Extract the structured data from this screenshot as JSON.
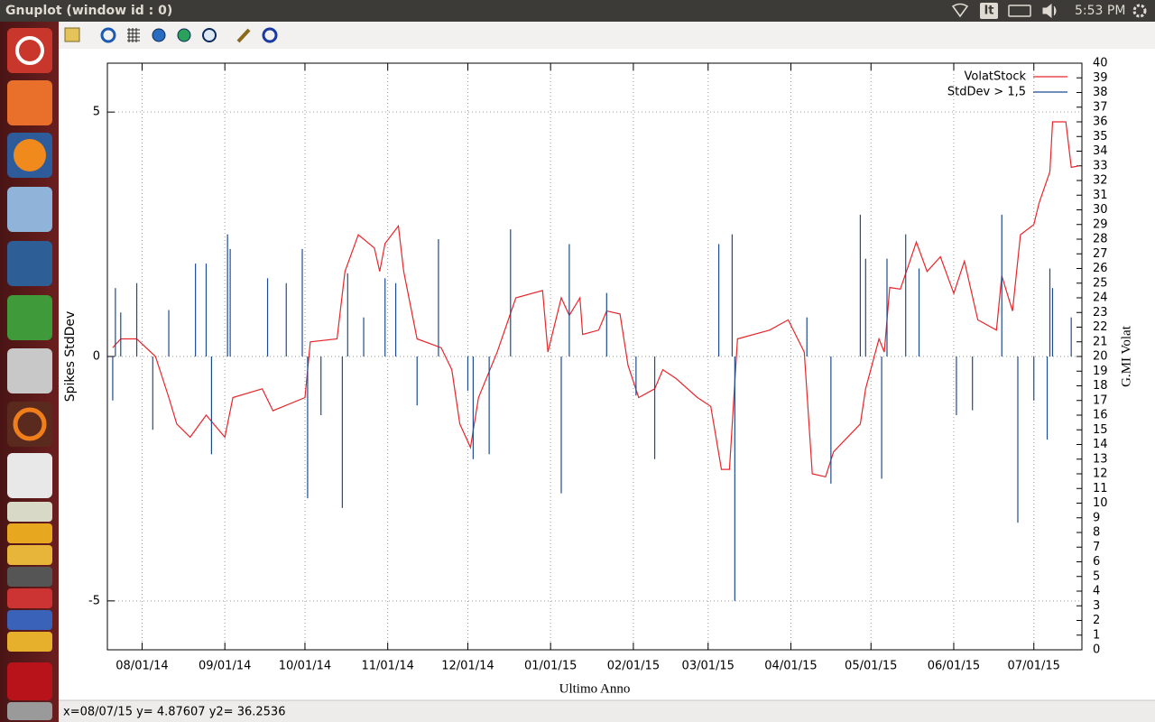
{
  "window": {
    "title": "Gnuplot (window id : 0)",
    "keyboard": "It",
    "clock": "5:53 PM",
    "status": "x=08/07/15 y= 4.87607 y2= 36.2536"
  },
  "chart_data": {
    "type": "line",
    "xlabel": "Ultimo Anno",
    "ylabel": "Spikes StdDev",
    "y2label": "G.MI Volat",
    "xlim": [
      "2014-07-19",
      "2015-07-19"
    ],
    "xticks": [
      {
        "value": "2014-08-01",
        "label": "08/01/14"
      },
      {
        "value": "2014-09-01",
        "label": "09/01/14"
      },
      {
        "value": "2014-10-01",
        "label": "10/01/14"
      },
      {
        "value": "2014-11-01",
        "label": "11/01/14"
      },
      {
        "value": "2014-12-01",
        "label": "12/01/14"
      },
      {
        "value": "2015-01-01",
        "label": "01/01/15"
      },
      {
        "value": "2015-02-01",
        "label": "02/01/15"
      },
      {
        "value": "2015-03-01",
        "label": "03/01/15"
      },
      {
        "value": "2015-04-01",
        "label": "04/01/15"
      },
      {
        "value": "2015-05-01",
        "label": "05/01/15"
      },
      {
        "value": "2015-06-01",
        "label": "06/01/15"
      },
      {
        "value": "2015-07-01",
        "label": "07/01/15"
      }
    ],
    "ylim": [
      -6,
      6
    ],
    "yticks": [
      -5,
      0,
      5
    ],
    "y2lim": [
      0,
      40
    ],
    "y2ticks": [
      0,
      1,
      2,
      3,
      4,
      5,
      6,
      7,
      8,
      9,
      10,
      11,
      12,
      13,
      14,
      15,
      16,
      17,
      18,
      19,
      20,
      21,
      22,
      23,
      24,
      25,
      26,
      27,
      28,
      29,
      30,
      31,
      32,
      33,
      34,
      35,
      36,
      37,
      38,
      39,
      40
    ],
    "grid": true,
    "legend": "top-right",
    "series": [
      {
        "name": "VolatStock",
        "color": "#e8262b",
        "style": "line",
        "axis": "y2",
        "x": [
          "2014-07-21",
          "2014-07-24",
          "2014-07-30",
          "2014-08-06",
          "2014-08-11",
          "2014-08-14",
          "2014-08-19",
          "2014-08-25",
          "2014-09-01",
          "2014-09-04",
          "2014-09-15",
          "2014-09-19",
          "2014-10-01",
          "2014-10-03",
          "2014-10-13",
          "2014-10-16",
          "2014-10-21",
          "2014-10-27",
          "2014-10-29",
          "2014-10-31",
          "2014-11-05",
          "2014-11-07",
          "2014-11-12",
          "2014-11-21",
          "2014-11-25",
          "2014-11-28",
          "2014-12-02",
          "2014-12-05",
          "2014-12-12",
          "2014-12-19",
          "2014-12-29",
          "2014-12-31",
          "2015-01-05",
          "2015-01-08",
          "2015-01-12",
          "2015-01-13",
          "2015-01-19",
          "2015-01-22",
          "2015-01-27",
          "2015-01-30",
          "2015-02-03",
          "2015-02-09",
          "2015-02-12",
          "2015-02-17",
          "2015-02-25",
          "2015-03-02",
          "2015-03-06",
          "2015-03-09",
          "2015-03-12",
          "2015-03-24",
          "2015-03-31",
          "2015-04-06",
          "2015-04-09",
          "2015-04-14",
          "2015-04-17",
          "2015-04-27",
          "2015-04-29",
          "2015-05-04",
          "2015-05-06",
          "2015-05-08",
          "2015-05-12",
          "2015-05-15",
          "2015-05-18",
          "2015-05-22",
          "2015-05-27",
          "2015-06-01",
          "2015-06-05",
          "2015-06-10",
          "2015-06-17",
          "2015-06-19",
          "2015-06-23",
          "2015-06-26",
          "2015-07-01",
          "2015-07-03",
          "2015-07-07",
          "2015-07-08",
          "2015-07-13",
          "2015-07-15",
          "2015-07-18"
        ],
        "values": [
          20.6,
          21.2,
          21.2,
          20.0,
          17.2,
          15.4,
          14.5,
          16.0,
          14.5,
          17.2,
          17.8,
          16.3,
          17.2,
          21.0,
          21.2,
          25.8,
          28.3,
          27.4,
          25.8,
          27.7,
          28.9,
          25.8,
          21.2,
          20.6,
          19.1,
          15.4,
          13.8,
          17.2,
          20.3,
          24.0,
          24.5,
          20.3,
          24.0,
          22.8,
          24.0,
          21.5,
          21.8,
          23.1,
          22.9,
          19.4,
          17.2,
          17.8,
          19.1,
          18.5,
          17.2,
          16.6,
          12.3,
          12.3,
          21.2,
          21.8,
          22.5,
          20.3,
          12.0,
          11.8,
          13.5,
          15.4,
          17.8,
          21.2,
          20.3,
          24.7,
          24.6,
          26.2,
          27.8,
          25.8,
          26.8,
          24.3,
          26.5,
          22.5,
          21.8,
          25.5,
          23.1,
          28.3,
          29.0,
          30.5,
          32.6,
          36.0,
          36.0,
          32.9,
          33.0
        ]
      },
      {
        "name": "StdDev > 1,5",
        "color": "#1f4c8f",
        "style": "impulse",
        "axis": "y",
        "x": [
          "2014-07-21",
          "2014-07-22",
          "2014-07-24",
          "2014-07-30",
          "2014-08-05",
          "2014-08-11",
          "2014-08-21",
          "2014-08-25",
          "2014-08-27",
          "2014-09-02",
          "2014-09-03",
          "2014-09-17",
          "2014-09-24",
          "2014-09-30",
          "2014-10-02",
          "2014-10-07",
          "2014-10-15",
          "2014-10-17",
          "2014-10-23",
          "2014-10-31",
          "2014-11-04",
          "2014-11-12",
          "2014-11-20",
          "2014-12-01",
          "2014-12-03",
          "2014-12-09",
          "2014-12-17",
          "2015-01-05",
          "2015-01-08",
          "2015-01-22",
          "2015-02-02",
          "2015-02-09",
          "2015-03-05",
          "2015-03-10",
          "2015-03-11",
          "2015-04-07",
          "2015-04-16",
          "2015-04-27",
          "2015-04-29",
          "2015-05-05",
          "2015-05-07",
          "2015-05-14",
          "2015-05-19",
          "2015-06-02",
          "2015-06-08",
          "2015-06-19",
          "2015-06-25",
          "2015-07-01",
          "2015-07-06",
          "2015-07-07",
          "2015-07-08",
          "2015-07-15"
        ],
        "values": [
          -0.9,
          1.4,
          0.9,
          1.5,
          -1.5,
          0.95,
          1.9,
          1.9,
          -2.0,
          2.5,
          2.2,
          1.6,
          1.5,
          2.2,
          -2.9,
          -1.2,
          -3.1,
          1.7,
          0.8,
          1.6,
          1.5,
          -1.0,
          2.4,
          -0.7,
          -2.1,
          -2.0,
          2.6,
          -2.8,
          2.3,
          1.3,
          -0.8,
          -2.1,
          2.3,
          2.5,
          -5.0,
          0.8,
          -2.6,
          2.9,
          2.0,
          -2.5,
          2.0,
          2.5,
          1.8,
          -1.2,
          -1.1,
          2.9,
          -3.4,
          -0.9,
          -1.7,
          1.8,
          1.4,
          0.8
        ]
      }
    ]
  }
}
